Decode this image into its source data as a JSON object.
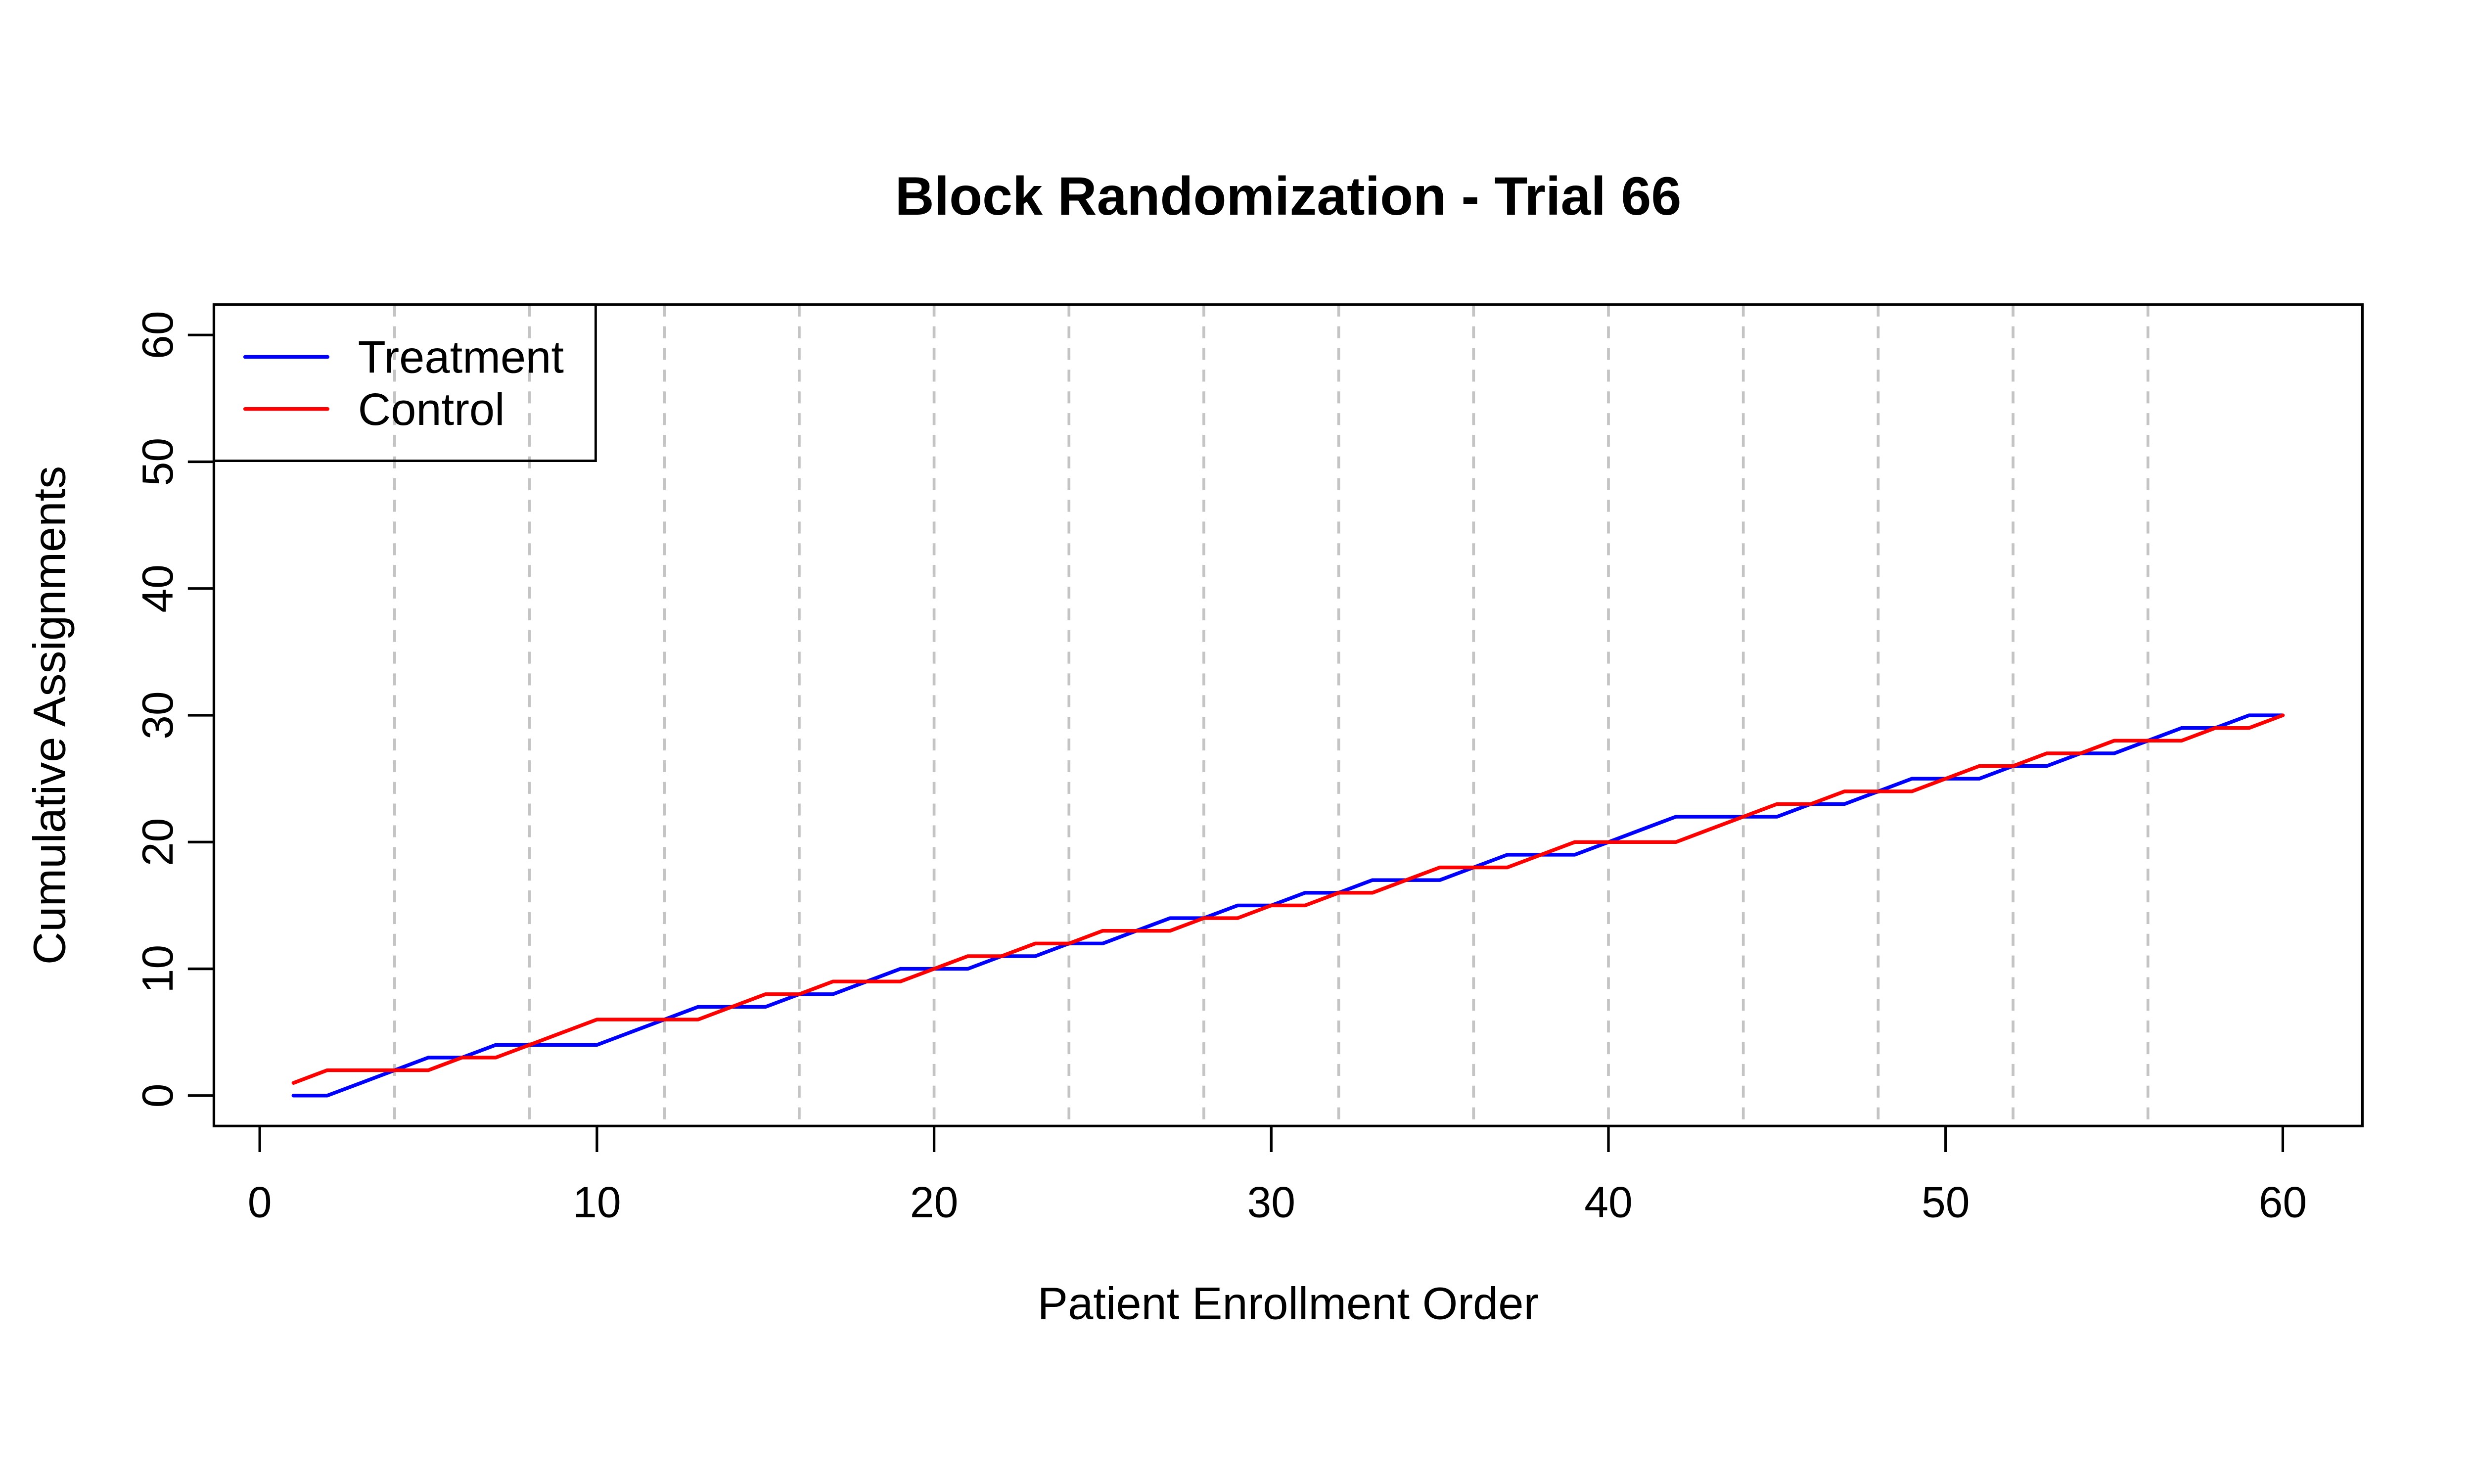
{
  "chart_data": {
    "type": "line",
    "title": "Block Randomization - Trial 66",
    "xlabel": "Patient Enrollment Order",
    "ylabel": "Cumulative Assignments",
    "x": [
      1,
      2,
      3,
      4,
      5,
      6,
      7,
      8,
      9,
      10,
      11,
      12,
      13,
      14,
      15,
      16,
      17,
      18,
      19,
      20,
      21,
      22,
      23,
      24,
      25,
      26,
      27,
      28,
      29,
      30,
      31,
      32,
      33,
      34,
      35,
      36,
      37,
      38,
      39,
      40,
      41,
      42,
      43,
      44,
      45,
      46,
      47,
      48,
      49,
      50,
      51,
      52,
      53,
      54,
      55,
      56,
      57,
      58,
      59,
      60
    ],
    "series": [
      {
        "name": "Treatment",
        "color": "#0000FF",
        "values": [
          0,
          0,
          1,
          2,
          3,
          3,
          4,
          4,
          4,
          4,
          5,
          6,
          7,
          7,
          7,
          8,
          8,
          9,
          10,
          10,
          10,
          11,
          11,
          12,
          12,
          13,
          14,
          14,
          15,
          15,
          16,
          16,
          17,
          17,
          17,
          18,
          19,
          19,
          19,
          20,
          21,
          22,
          22,
          22,
          22,
          23,
          23,
          24,
          25,
          25,
          25,
          26,
          26,
          27,
          27,
          28,
          29,
          29,
          30,
          30
        ]
      },
      {
        "name": "Control",
        "color": "#FF0000",
        "values": [
          1,
          2,
          2,
          2,
          2,
          3,
          3,
          4,
          5,
          6,
          6,
          6,
          6,
          7,
          8,
          8,
          9,
          9,
          9,
          10,
          11,
          11,
          12,
          12,
          13,
          13,
          13,
          14,
          14,
          15,
          15,
          16,
          16,
          17,
          18,
          18,
          18,
          19,
          20,
          20,
          20,
          20,
          21,
          22,
          23,
          23,
          24,
          24,
          24,
          25,
          26,
          26,
          27,
          27,
          28,
          28,
          28,
          29,
          29,
          30
        ]
      }
    ],
    "x_ticks": [
      0,
      10,
      20,
      30,
      40,
      50,
      60
    ],
    "y_ticks": [
      0,
      10,
      20,
      30,
      40,
      50,
      60
    ],
    "xlim": [
      -1.36,
      62.36
    ],
    "ylim": [
      -2.4,
      62.4
    ],
    "block_size": 4,
    "block_boundaries": [
      4,
      8,
      12,
      16,
      20,
      24,
      28,
      32,
      36,
      40,
      44,
      48,
      52,
      56
    ],
    "gridline_color": "#C4C4C4",
    "gridline_style": "dashed",
    "axis_color": "#000000",
    "legend_position": "topleft",
    "grid": "vertical-only",
    "legend_entries": [
      "Treatment",
      "Control"
    ]
  }
}
